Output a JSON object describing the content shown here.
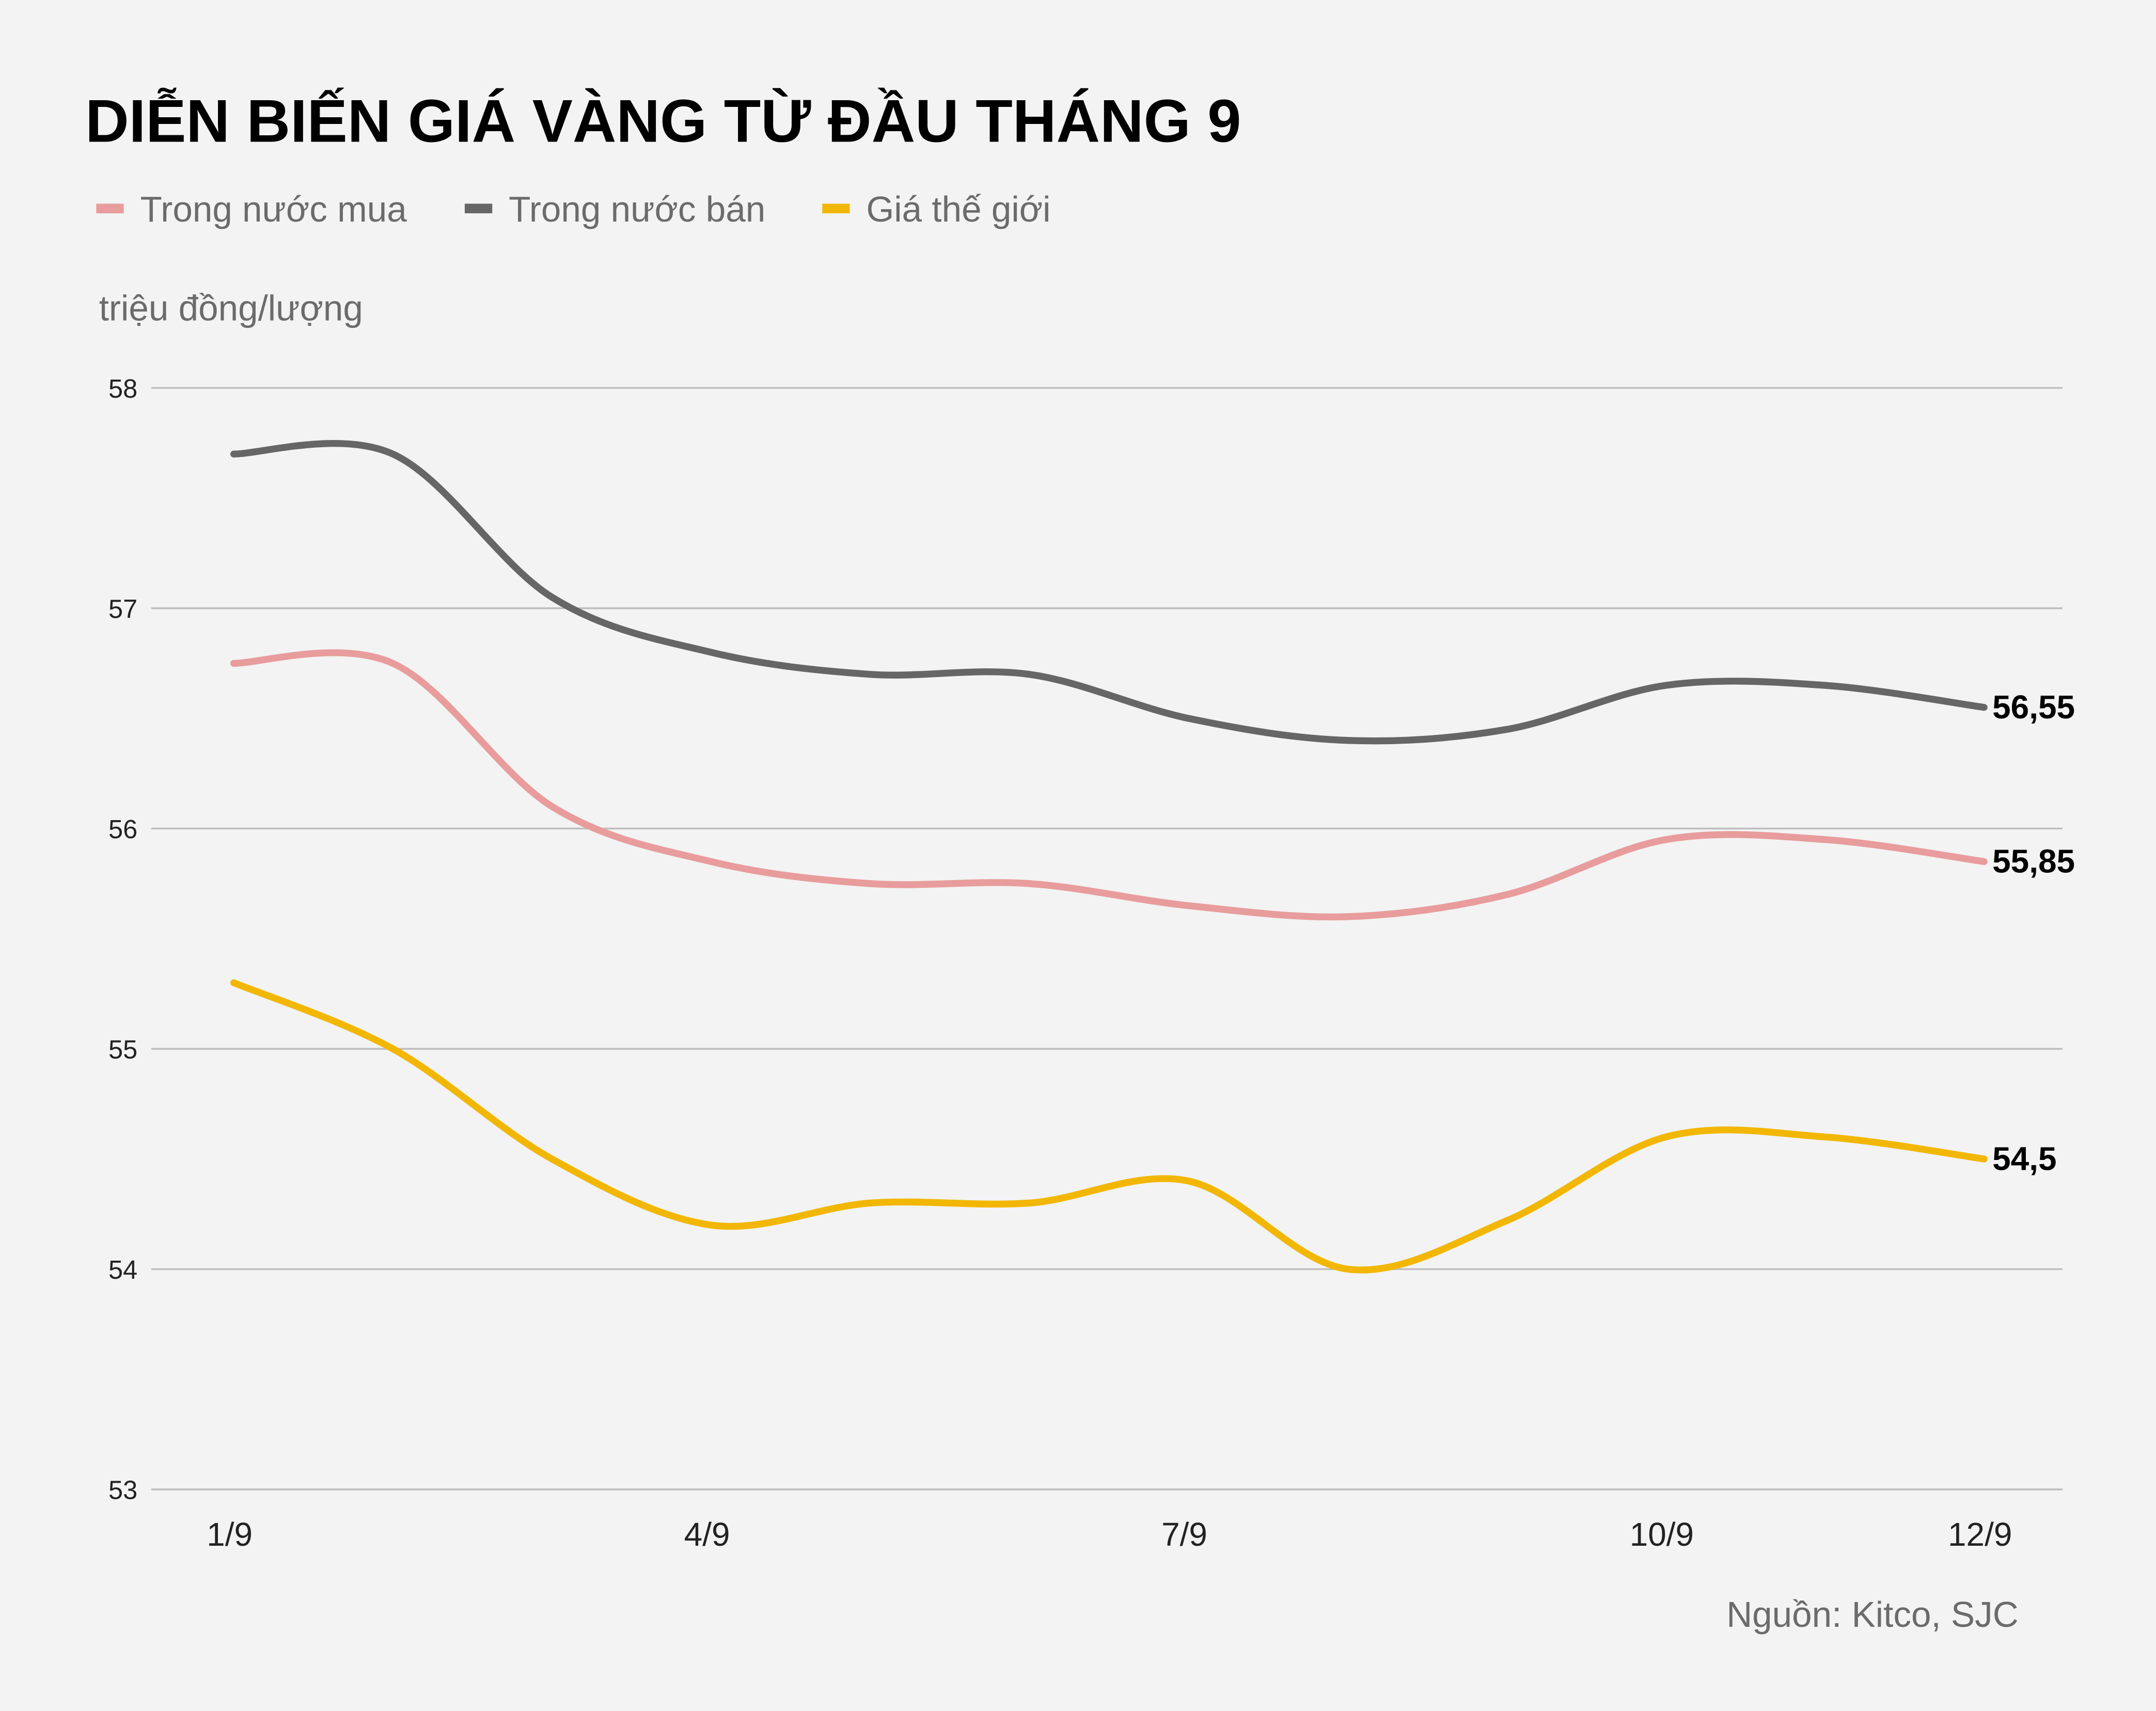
{
  "chart_data": {
    "type": "line",
    "title": "DIỄN BIẾN GIÁ VÀNG TỪ ĐẦU THÁNG 9",
    "ylabel": "triệu đồng/lượng",
    "xlabel": "",
    "source": "Nguồn: Kitco, SJC",
    "x": [
      1,
      2,
      3,
      4,
      5,
      6,
      7,
      8,
      9,
      10,
      11,
      12
    ],
    "x_ticks": [
      1,
      4,
      7,
      10,
      12
    ],
    "x_tick_labels": [
      "1/9",
      "4/9",
      "7/9",
      "10/9",
      "12/9"
    ],
    "ylim": [
      53,
      58
    ],
    "y_ticks": [
      53,
      54,
      55,
      56,
      57,
      58
    ],
    "y_tick_labels": [
      "53",
      "54",
      "55",
      "56",
      "57",
      "58"
    ],
    "grid": "horizontal",
    "legend_placement": "top-left",
    "series": [
      {
        "name": "Trong nước mua",
        "color": "#e89c9c",
        "values": [
          56.75,
          56.75,
          56.1,
          55.85,
          55.75,
          55.75,
          55.65,
          55.6,
          55.7,
          55.95,
          55.95,
          55.85
        ],
        "end_label": "55,85"
      },
      {
        "name": "Trong nước bán",
        "color": "#666666",
        "values": [
          57.7,
          57.7,
          57.05,
          56.8,
          56.7,
          56.7,
          56.5,
          56.4,
          56.45,
          56.65,
          56.65,
          56.55
        ],
        "end_label": "56,55"
      },
      {
        "name": "Giá thế giới",
        "color": "#f2b705",
        "values": [
          55.3,
          55.0,
          54.5,
          54.2,
          54.3,
          54.3,
          54.4,
          54.0,
          54.22,
          54.6,
          54.6,
          54.5
        ],
        "end_label": "54,5"
      }
    ]
  }
}
